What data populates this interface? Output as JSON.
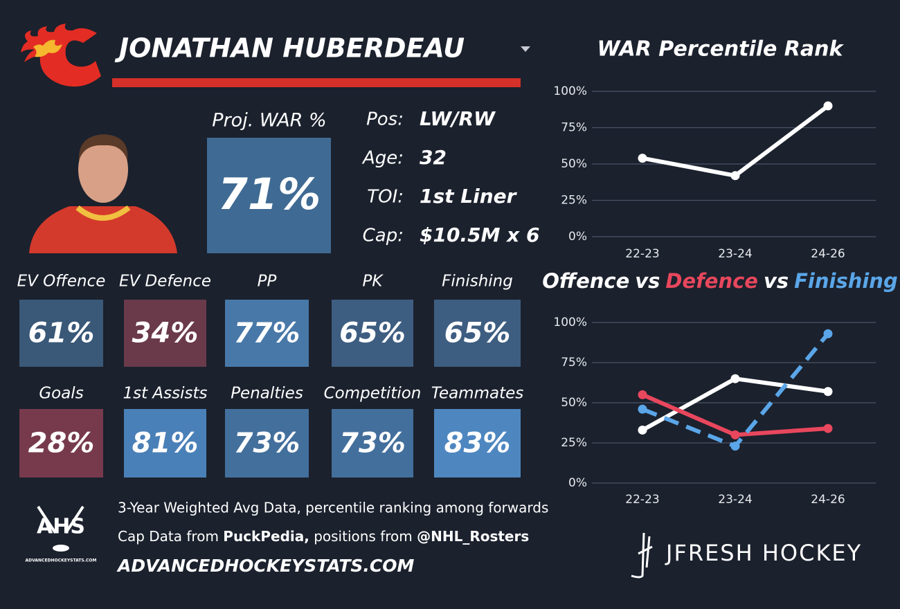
{
  "header": {
    "name": "JONATHAN HUBERDEAU"
  },
  "projection": {
    "label": "Proj. WAR %",
    "value": "71%",
    "color": "#3f6a93"
  },
  "info": [
    {
      "label": "Pos:",
      "value": "LW/RW"
    },
    {
      "label": "Age:",
      "value": "32"
    },
    {
      "label": "TOI:",
      "value": "1st Liner"
    },
    {
      "label": "Cap:",
      "value": "$10.5M x 6"
    }
  ],
  "tiles": [
    [
      {
        "label": "EV Offence",
        "value": "61%",
        "color": "#3a5878"
      },
      {
        "label": "EV Defence",
        "value": "34%",
        "color": "#6a3a4b"
      },
      {
        "label": "PP",
        "value": "77%",
        "color": "#4878a8"
      },
      {
        "label": "PK",
        "value": "65%",
        "color": "#3e5e81"
      },
      {
        "label": "Finishing",
        "value": "65%",
        "color": "#3e5e81"
      }
    ],
    [
      {
        "label": "Goals",
        "value": "28%",
        "color": "#773a4d"
      },
      {
        "label": "1st Assists",
        "value": "81%",
        "color": "#4a80b8"
      },
      {
        "label": "Penalties",
        "value": "73%",
        "color": "#436f9c"
      },
      {
        "label": "Competition",
        "value": "73%",
        "color": "#436f9c"
      },
      {
        "label": "Teammates",
        "value": "83%",
        "color": "#4e87c0"
      }
    ]
  ],
  "footer": {
    "logo": "AHS",
    "logo_caption": "ADVANCEDHOCKEYSTATS.COM",
    "line1": "3-Year Weighted Avg Data, percentile ranking among forwards",
    "line2": [
      {
        "text": "Cap Data from ",
        "bold": false
      },
      {
        "text": "PuckPedia,",
        "bold": true
      },
      {
        "text": " positions from ",
        "bold": false
      },
      {
        "text": "@NHL_Rosters",
        "bold": true
      }
    ],
    "url": "ADVANCEDHOCKEYSTATS.COM",
    "brand": "JFRESH HOCKEY"
  },
  "chart_data": [
    {
      "type": "line",
      "title": "WAR Percentile Rank",
      "categories": [
        "22-23",
        "23-24",
        "24-26"
      ],
      "values": [
        54,
        42,
        90
      ],
      "color": "#ffffff",
      "ylim": [
        0,
        100
      ],
      "yticks": [
        {
          "value": 0,
          "label": "0%"
        },
        {
          "value": 25,
          "label": "25%"
        },
        {
          "value": 50,
          "label": "50%"
        },
        {
          "value": 75,
          "label": "75%"
        },
        {
          "value": 100,
          "label": "100%"
        }
      ],
      "grid": true
    },
    {
      "type": "line",
      "title_separator": "vs",
      "categories": [
        "22-23",
        "23-24",
        "24-26"
      ],
      "series": [
        {
          "name": "Offence",
          "color": "#ffffff",
          "dashed": false,
          "values": [
            33,
            65,
            57
          ]
        },
        {
          "name": "Defence",
          "color": "#e8475d",
          "dashed": false,
          "values": [
            55,
            30,
            34
          ]
        },
        {
          "name": "Finishing",
          "color": "#5aa6e8",
          "dashed": true,
          "values": [
            46,
            23,
            93
          ]
        }
      ],
      "ylim": [
        0,
        100
      ],
      "yticks": [
        {
          "value": 0,
          "label": "0%"
        },
        {
          "value": 25,
          "label": "25%"
        },
        {
          "value": 50,
          "label": "50%"
        },
        {
          "value": 75,
          "label": "75%"
        },
        {
          "value": 100,
          "label": "100%"
        }
      ],
      "grid": true
    }
  ]
}
